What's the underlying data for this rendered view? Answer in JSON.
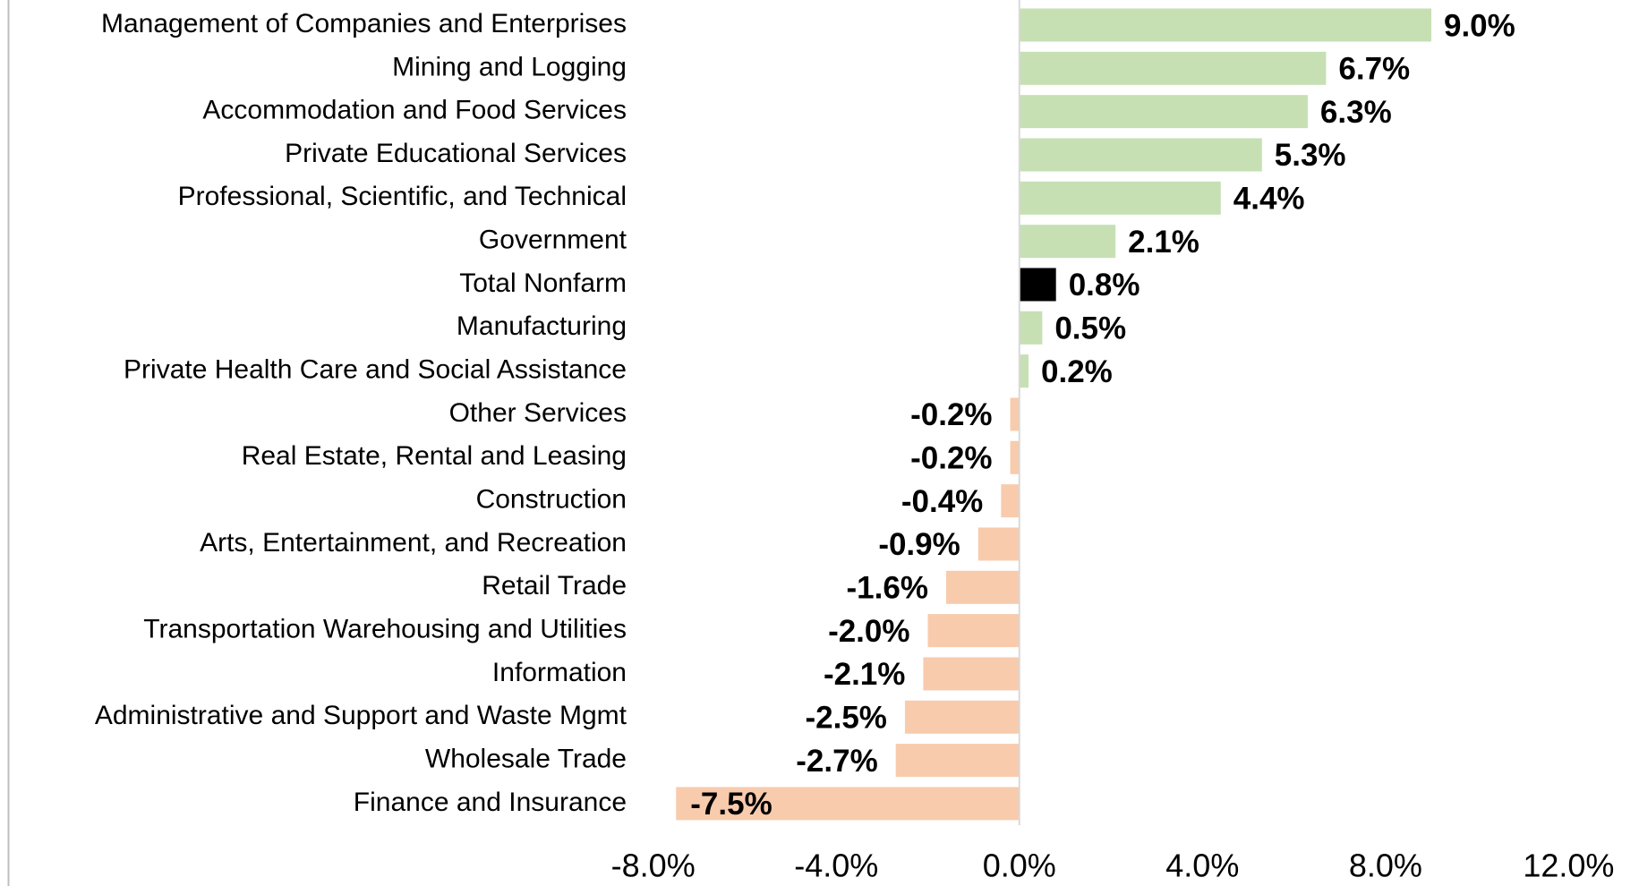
{
  "chart_data": {
    "type": "bar",
    "orientation": "horizontal",
    "categories": [
      "Management of Companies and Enterprises",
      "Mining and Logging",
      "Accommodation and Food Services",
      "Private Educational Services",
      "Professional, Scientific, and Technical",
      "Government",
      "Total Nonfarm",
      "Manufacturing",
      "Private Health Care and Social Assistance",
      "Other Services",
      "Real Estate, Rental and Leasing",
      "Construction",
      "Arts, Entertainment, and Recreation",
      "Retail Trade",
      "Transportation Warehousing and Utilities",
      "Information",
      "Administrative and Support and Waste Mgmt",
      "Wholesale Trade",
      "Finance and Insurance"
    ],
    "values": [
      9.0,
      6.7,
      6.3,
      5.3,
      4.4,
      2.1,
      0.8,
      0.5,
      0.2,
      -0.2,
      -0.2,
      -0.4,
      -0.9,
      -1.6,
      -2.0,
      -2.1,
      -2.5,
      -2.7,
      -7.5
    ],
    "value_labels": [
      "9.0%",
      "6.7%",
      "6.3%",
      "5.3%",
      "4.4%",
      "2.1%",
      "0.8%",
      "0.5%",
      "0.2%",
      "-0.2%",
      "-0.2%",
      "-0.4%",
      "-0.9%",
      "-1.6%",
      "-2.0%",
      "-2.1%",
      "-2.5%",
      "-2.7%",
      "-7.5%"
    ],
    "colors": [
      "#c6e0b4",
      "#c6e0b4",
      "#c6e0b4",
      "#c6e0b4",
      "#c6e0b4",
      "#c6e0b4",
      "#000000",
      "#c6e0b4",
      "#c6e0b4",
      "#f8cbad",
      "#f8cbad",
      "#f8cbad",
      "#f8cbad",
      "#f8cbad",
      "#f8cbad",
      "#f8cbad",
      "#f8cbad",
      "#f8cbad",
      "#f8cbad"
    ],
    "xlim": [
      -8,
      12
    ],
    "xticks": [
      {
        "value": -8,
        "label": "-8.0%"
      },
      {
        "value": -4,
        "label": "-4.0%"
      },
      {
        "value": 0,
        "label": "0.0%"
      },
      {
        "value": 4,
        "label": "4.0%"
      },
      {
        "value": 8,
        "label": "8.0%"
      },
      {
        "value": 12,
        "label": "12.0%"
      }
    ],
    "grid": false
  }
}
